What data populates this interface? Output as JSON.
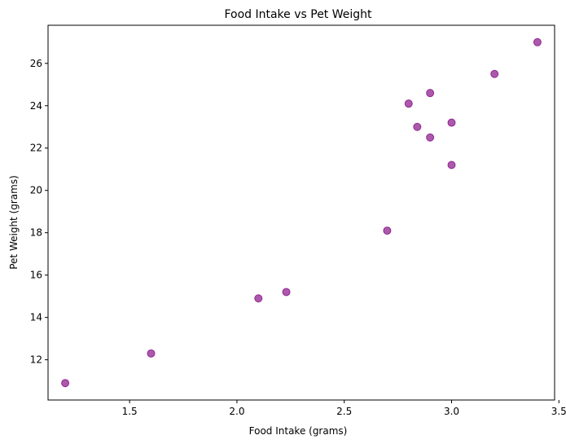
{
  "chart_data": {
    "type": "scatter",
    "title": "Food Intake vs Pet Weight",
    "xlabel": "Food Intake (grams)",
    "ylabel": "Pet Weight (grams)",
    "xlim": [
      1.12,
      3.48
    ],
    "ylim": [
      10.1,
      27.8
    ],
    "xticks": [
      1.5,
      2.0,
      2.5,
      3.0,
      3.5
    ],
    "yticks": [
      12,
      14,
      16,
      18,
      20,
      22,
      24,
      26
    ],
    "grid": false,
    "color": "#800080",
    "points": [
      {
        "x": 1.2,
        "y": 10.9
      },
      {
        "x": 1.6,
        "y": 12.3
      },
      {
        "x": 2.1,
        "y": 14.9
      },
      {
        "x": 2.23,
        "y": 15.2
      },
      {
        "x": 2.7,
        "y": 18.1
      },
      {
        "x": 2.8,
        "y": 24.1
      },
      {
        "x": 2.84,
        "y": 23.0
      },
      {
        "x": 2.9,
        "y": 24.6
      },
      {
        "x": 2.9,
        "y": 22.5
      },
      {
        "x": 3.0,
        "y": 23.2
      },
      {
        "x": 3.0,
        "y": 21.2
      },
      {
        "x": 3.2,
        "y": 25.5
      },
      {
        "x": 3.4,
        "y": 27.0
      }
    ]
  }
}
